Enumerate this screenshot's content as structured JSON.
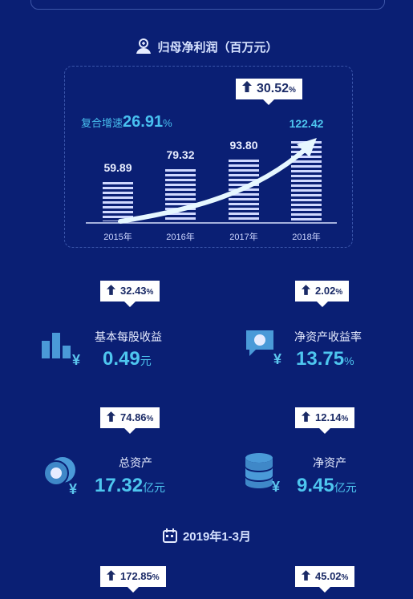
{
  "profit_section": {
    "title": "归母净利润（百万元）",
    "cagr_label": "复合增速",
    "cagr_value": "26.91",
    "cagr_unit": "%",
    "top_growth": "30.52",
    "top_growth_unit": "%"
  },
  "chart_data": {
    "type": "bar",
    "title": "归母净利润（百万元）",
    "categories": [
      "2015年",
      "2016年",
      "2017年",
      "2018年"
    ],
    "values": [
      59.89,
      79.32,
      93.8,
      122.42
    ],
    "value_labels": [
      "59.89",
      "79.32",
      "93.80",
      "122.42"
    ]
  },
  "metrics": [
    {
      "growth": "32.43",
      "unit_pct": "%",
      "label": "基本每股收益",
      "value": "0.49",
      "unit": "元"
    },
    {
      "growth": "2.02",
      "unit_pct": "%",
      "label": "净资产收益率",
      "value": "13.75",
      "unit": "%"
    },
    {
      "growth": "74.86",
      "unit_pct": "%",
      "label": "总资产",
      "value": "17.32",
      "unit": "亿元"
    },
    {
      "growth": "12.14",
      "unit_pct": "%",
      "label": "净资产",
      "value": "9.45",
      "unit": "亿元"
    }
  ],
  "q1_section": {
    "title": "2019年1-3月",
    "growth_left": "172.85",
    "growth_right": "45.02",
    "unit_pct": "%"
  },
  "colors": {
    "background": "#0a1f74",
    "accent": "#4ec6ef",
    "bar": "#cfd8ff"
  }
}
